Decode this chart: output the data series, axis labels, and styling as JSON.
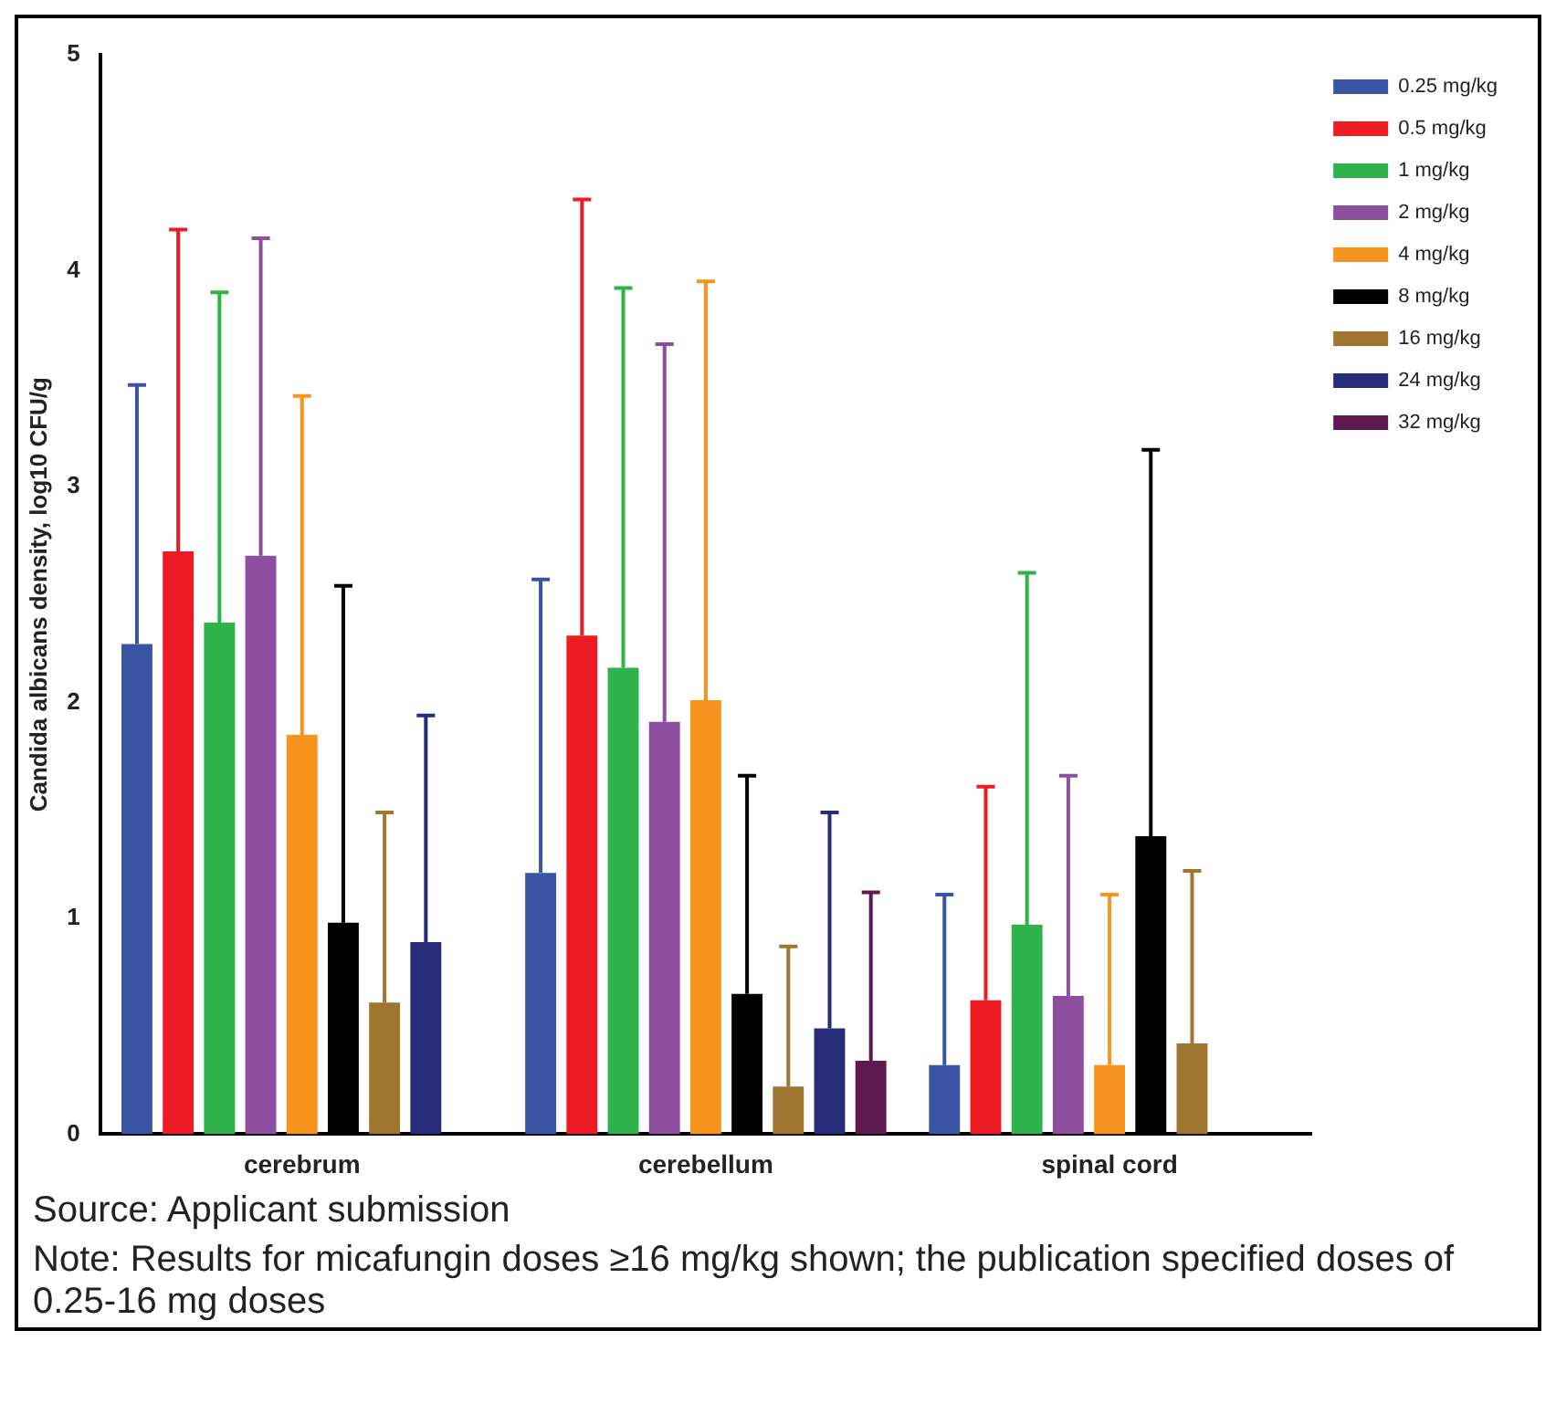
{
  "chart_data": {
    "type": "bar",
    "ylabel": "Candida albicans density, log10 CFU/g",
    "categories": [
      "cerebrum",
      "cerebellum",
      "spinal cord"
    ],
    "series": [
      {
        "name": "0.25 mg/kg",
        "color": "#3a54a4",
        "values": [
          2.27,
          1.21,
          0.32
        ],
        "errors": [
          [
            2.27,
            3.47
          ],
          [
            1.21,
            2.57
          ],
          [
            0.32,
            1.11
          ]
        ]
      },
      {
        "name": "0.5 mg/kg",
        "color": "#ed1c24",
        "values": [
          2.7,
          2.31,
          0.62
        ],
        "errors": [
          [
            2.7,
            4.19
          ],
          [
            2.31,
            4.33
          ],
          [
            0.62,
            1.61
          ]
        ]
      },
      {
        "name": "1 mg/kg",
        "color": "#2db34a",
        "values": [
          2.37,
          2.16,
          0.97
        ],
        "errors": [
          [
            2.37,
            3.9
          ],
          [
            2.16,
            3.92
          ],
          [
            0.97,
            2.6
          ]
        ]
      },
      {
        "name": "2 mg/kg",
        "color": "#8e4ea0",
        "values": [
          2.68,
          1.91,
          0.64
        ],
        "errors": [
          [
            2.68,
            4.15
          ],
          [
            1.91,
            3.66
          ],
          [
            0.64,
            1.66
          ]
        ]
      },
      {
        "name": "4 mg/kg",
        "color": "#f7941d",
        "values": [
          1.85,
          2.01,
          0.32
        ],
        "errors": [
          [
            1.85,
            3.42
          ],
          [
            2.01,
            3.95
          ],
          [
            0.32,
            1.11
          ]
        ]
      },
      {
        "name": "8 mg/kg",
        "color": "#000000",
        "values": [
          0.98,
          0.65,
          1.38
        ],
        "errors": [
          [
            0.98,
            2.54
          ],
          [
            0.65,
            1.66
          ],
          [
            1.38,
            3.17
          ]
        ]
      },
      {
        "name": "16 mg/kg",
        "color": "#a0752f",
        "values": [
          0.61,
          0.22,
          0.42
        ],
        "errors": [
          [
            0.61,
            1.49
          ],
          [
            0.22,
            0.87
          ],
          [
            0.42,
            1.22
          ]
        ]
      },
      {
        "name": "24 mg/kg",
        "color": "#262b7a",
        "values": [
          0.89,
          0.49,
          null
        ],
        "errors": [
          [
            0.89,
            1.94
          ],
          [
            0.49,
            1.49
          ],
          null
        ]
      },
      {
        "name": "32 mg/kg",
        "color": "#5e1a4e",
        "values": [
          null,
          0.34,
          null
        ],
        "errors": [
          null,
          [
            0.34,
            1.12
          ],
          null
        ]
      }
    ],
    "ylim": [
      0,
      5
    ],
    "yticks": [
      0,
      1,
      2,
      3,
      4,
      5
    ],
    "grid": false,
    "legend": "right",
    "annotations": [
      "Source: Applicant submission",
      "Note: Results for micafungin doses ≥16 mg/kg shown; the publication specified doses of 0.25-16 mg doses"
    ]
  }
}
